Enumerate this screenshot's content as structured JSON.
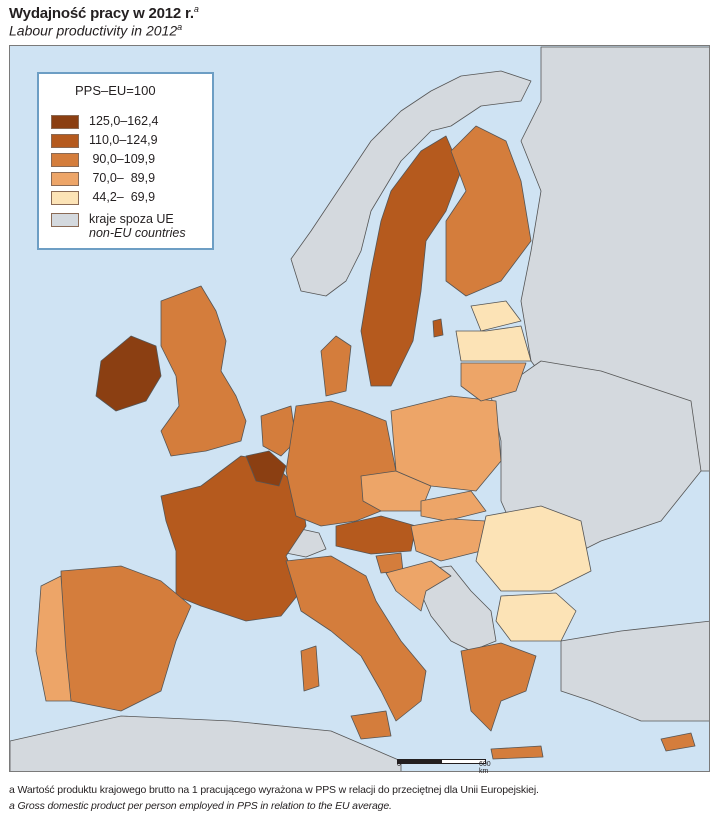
{
  "title": {
    "pl": "Wydajność pracy w 2012 r.",
    "en": "Labour productivity in 2012",
    "note_marker": "a"
  },
  "legend": {
    "heading": "PPS–EU=100",
    "classes": [
      {
        "label": "125,0–162,4",
        "color": "#8b3f12"
      },
      {
        "label": "110,0–124,9",
        "color": "#b55a1e"
      },
      {
        "label": " 90,0–109,9",
        "color": "#d47d3c"
      },
      {
        "label": " 70,0–  89,9",
        "color": "#eda568"
      },
      {
        "label": " 44,2–  69,9",
        "color": "#fce3b6"
      }
    ],
    "non_eu": {
      "label_pl": "kraje spoza UE",
      "label_en": "non-EU countries",
      "color": "#d4d9de"
    }
  },
  "scale": {
    "start": "0",
    "end": "600 km"
  },
  "colors": {
    "sea": "#cfe3f3",
    "non_eu": "#d4d9de",
    "border": "#555555"
  },
  "footnotes": {
    "pl": "a Wartość produktu krajowego brutto na 1 pracującego wyrażona w PPS w relacji do przeciętnej dla Unii Europejskiej.",
    "en": "a Gross domestic product per person employed in PPS in relation to the EU average."
  }
}
